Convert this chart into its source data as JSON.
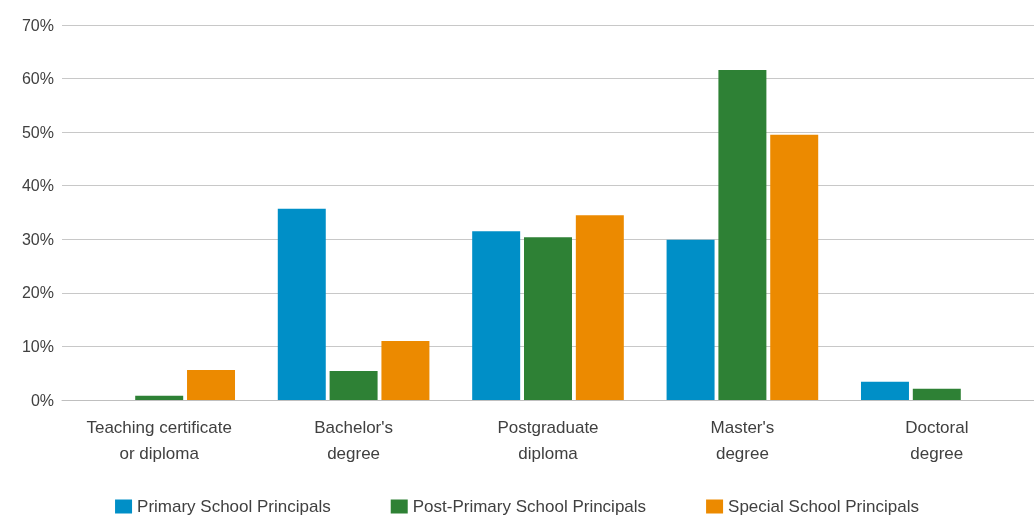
{
  "chart_data": {
    "type": "bar",
    "categories": [
      "Teaching certificate or diploma",
      "Bachelor's degree",
      "Postgraduate diploma",
      "Master's degree",
      "Doctoral degree"
    ],
    "series": [
      {
        "name": "Primary School Principals",
        "color": "#008fc7",
        "values": [
          0,
          35.7,
          31.5,
          29.9,
          3.4
        ]
      },
      {
        "name": "Post-Primary School Principals",
        "color": "#2e8135",
        "values": [
          0.8,
          5.4,
          30.4,
          61.6,
          2.1
        ]
      },
      {
        "name": "Special School Principals",
        "color": "#ec8a00",
        "values": [
          5.6,
          11.0,
          34.5,
          49.5,
          0
        ]
      }
    ],
    "ylim": [
      0,
      70
    ],
    "yticks": [
      {
        "value": 0,
        "label": "0%"
      },
      {
        "value": 10,
        "label": "10%"
      },
      {
        "value": 20,
        "label": "20%"
      },
      {
        "value": 30,
        "label": "30%"
      },
      {
        "value": 40,
        "label": "40%"
      },
      {
        "value": 50,
        "label": "50%"
      },
      {
        "value": 60,
        "label": "60%"
      },
      {
        "value": 70,
        "label": "70%"
      }
    ],
    "grid": "y",
    "legend": "bottom"
  }
}
